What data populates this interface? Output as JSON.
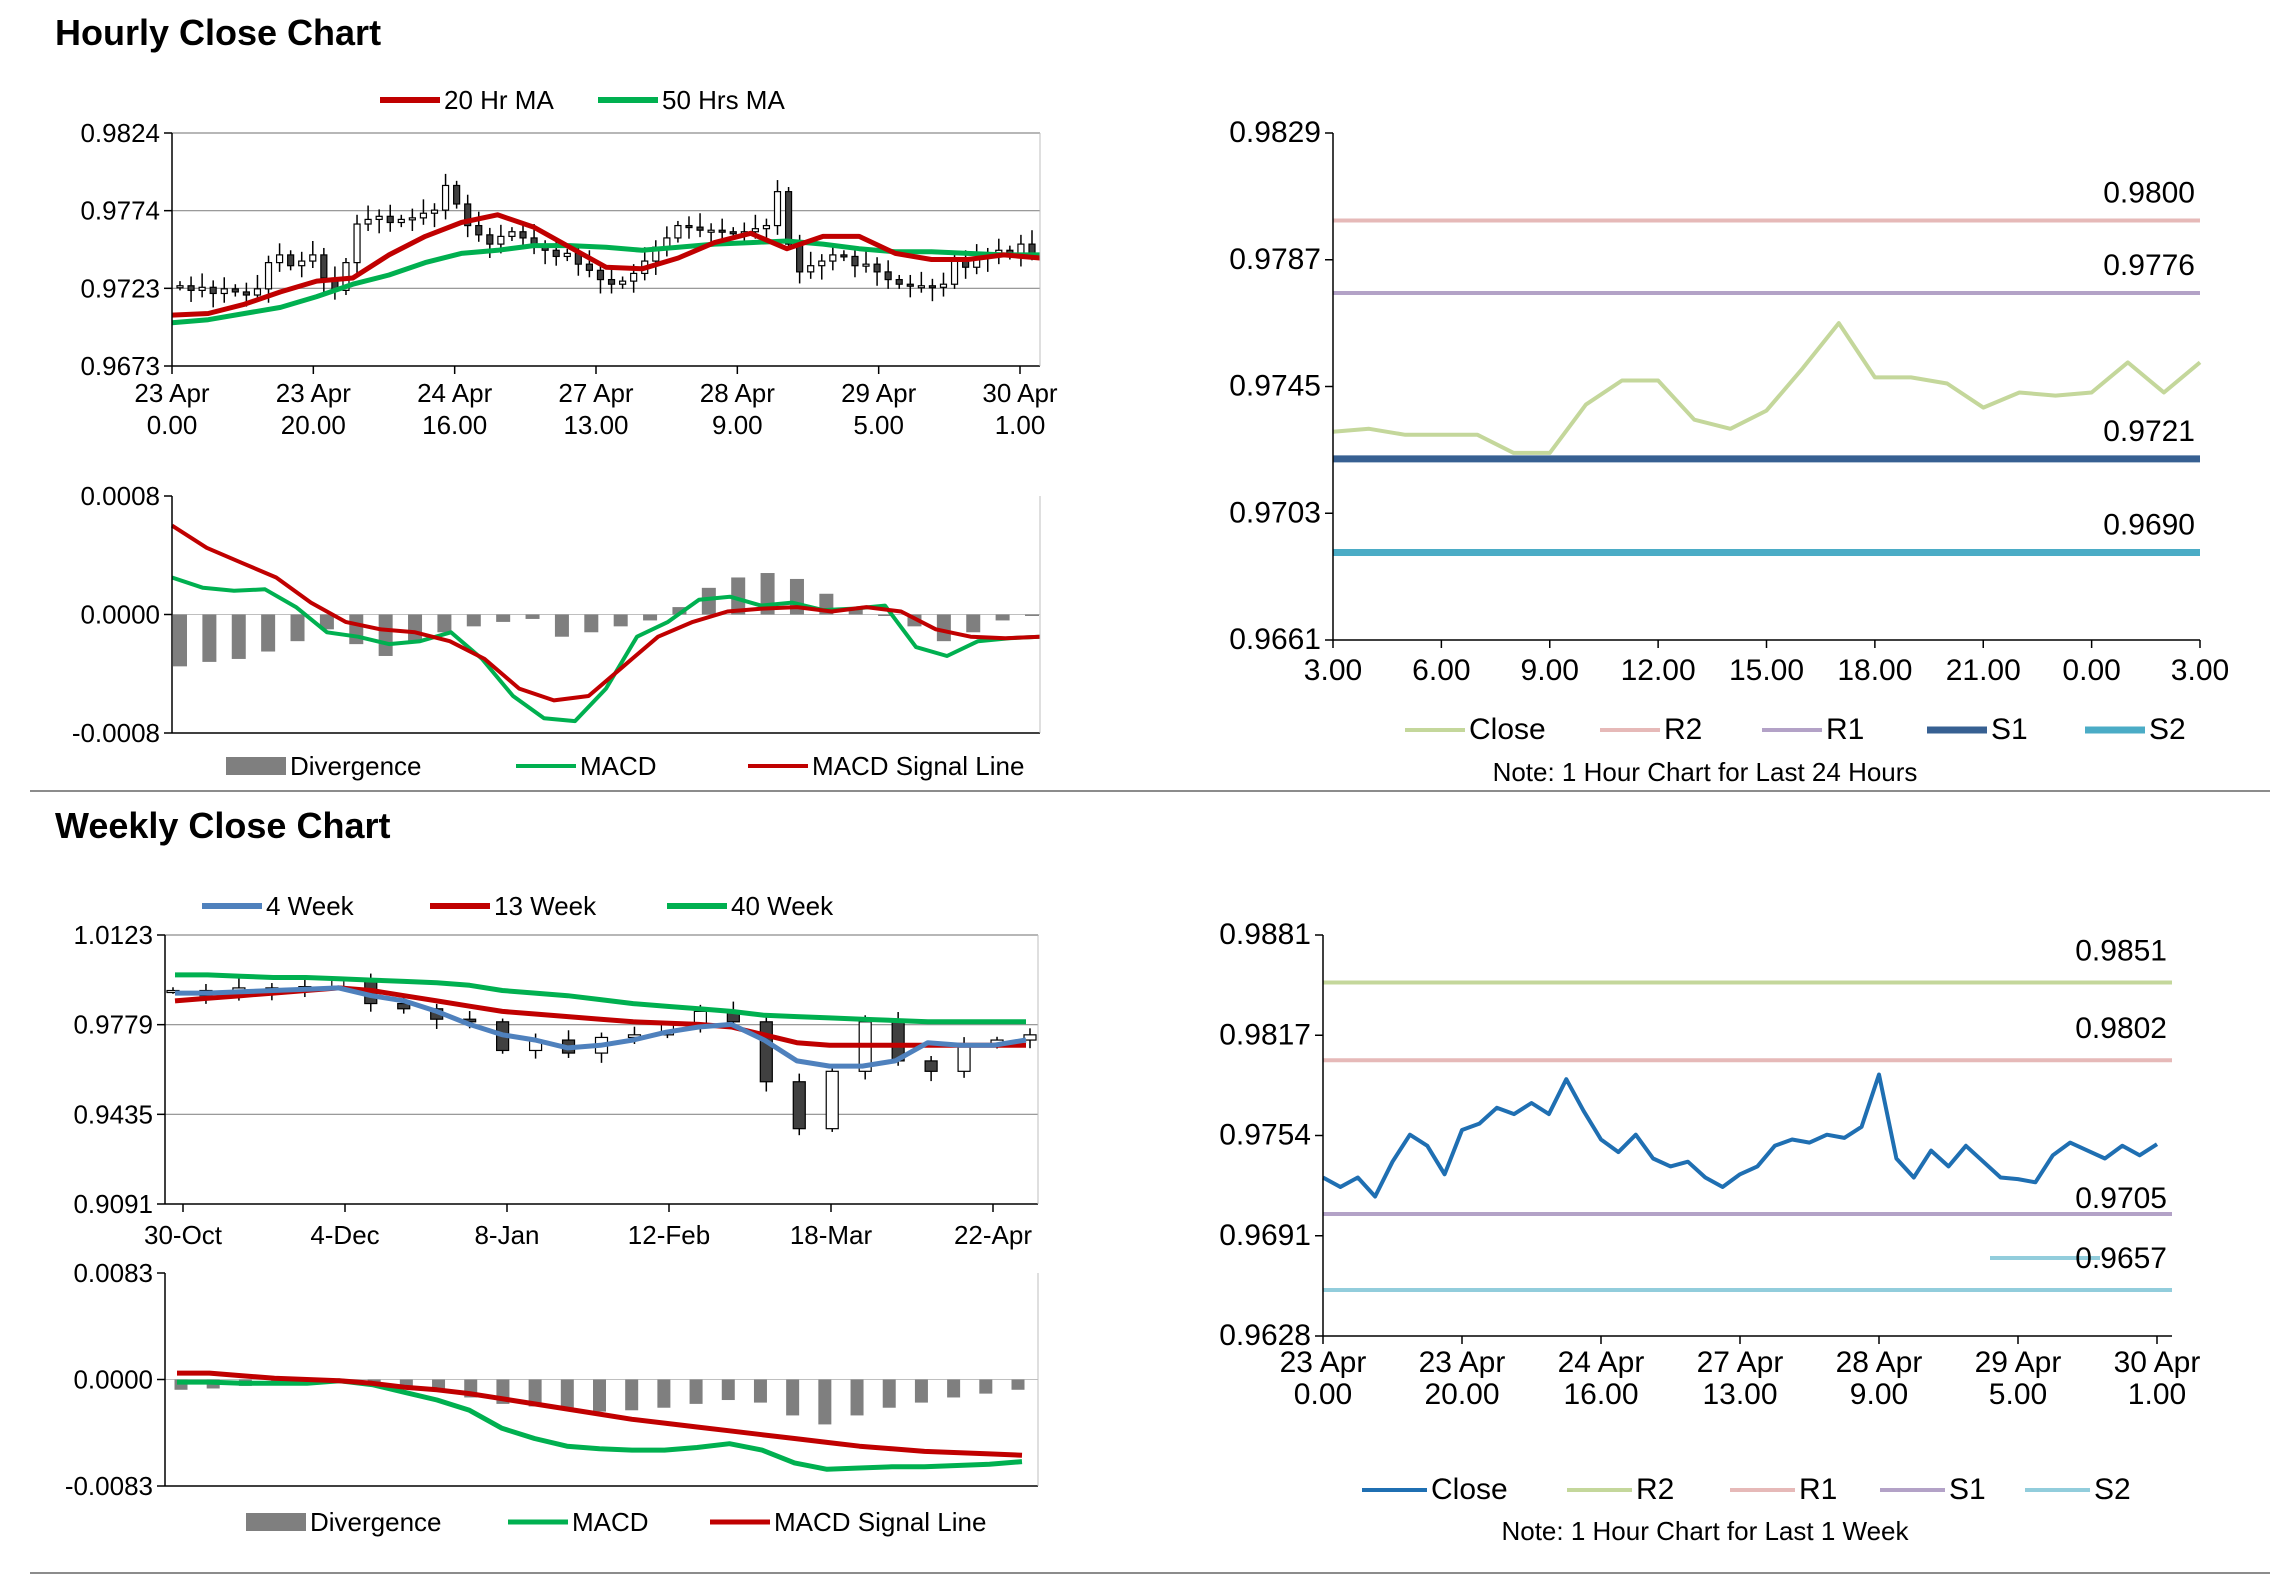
{
  "sections": {
    "hourly_title": "Hourly Close Chart",
    "weekly_title": "Weekly Close Chart"
  },
  "colors": {
    "ma_red": "#c00000",
    "ma_green": "#00b050",
    "ma_blue": "#4f81bd",
    "divergence": "#7f7f7f",
    "close_light_green": "#c4d79b",
    "r2_pink": "#e6b9b8",
    "r1_lavender": "#b3a2c7",
    "s1_blue": "#376092",
    "s2_teal": "#4bacc6",
    "weekly_close": "#1f6fb2",
    "weekly_r2": "#c4d79b",
    "weekly_r1": "#e6b9b8",
    "weekly_s1": "#b3a2c7",
    "weekly_s2": "#92cddc"
  },
  "chart_data": [
    {
      "id": "hourly_price",
      "type": "candlestick",
      "legend": [
        "20 Hr MA",
        "50 Hrs MA"
      ],
      "yticks": [
        "0.9824",
        "0.9774",
        "0.9723",
        "0.9673"
      ],
      "ylim": [
        0.9673,
        0.9824
      ],
      "xticks": [
        [
          "23 Apr",
          "0.00"
        ],
        [
          "23 Apr",
          "20.00"
        ],
        [
          "24 Apr",
          "16.00"
        ],
        [
          "27 Apr",
          "13.00"
        ],
        [
          "28 Apr",
          "9.00"
        ],
        [
          "29 Apr",
          "5.00"
        ],
        [
          "30 Apr",
          "1.00"
        ]
      ],
      "close": [
        0.9725,
        0.9722,
        0.9724,
        0.972,
        0.9723,
        0.9721,
        0.9719,
        0.9723,
        0.974,
        0.9745,
        0.9738,
        0.9741,
        0.9745,
        0.973,
        0.9722,
        0.974,
        0.9765,
        0.9768,
        0.977,
        0.9766,
        0.9768,
        0.9769,
        0.9772,
        0.9774,
        0.979,
        0.9778,
        0.9764,
        0.9758,
        0.9752,
        0.9757,
        0.976,
        0.9756,
        0.975,
        0.9748,
        0.9744,
        0.9746,
        0.9739,
        0.9735,
        0.9729,
        0.9726,
        0.9728,
        0.9733,
        0.9741,
        0.975,
        0.9756,
        0.9764,
        0.9763,
        0.9761,
        0.9761,
        0.976,
        0.9759,
        0.976,
        0.9762,
        0.9764,
        0.9786,
        0.9752,
        0.9734,
        0.9738,
        0.9741,
        0.9745,
        0.9744,
        0.9738,
        0.9739,
        0.9734,
        0.9729,
        0.9726,
        0.9725,
        0.9725,
        0.9724,
        0.9726,
        0.9742,
        0.9737,
        0.9743,
        0.9745,
        0.9748,
        0.9745,
        0.9752,
        0.9746
      ],
      "ma20": [
        0.9706,
        0.9707,
        0.9713,
        0.9721,
        0.9728,
        0.973,
        0.9745,
        0.9757,
        0.9766,
        0.9771,
        0.9763,
        0.975,
        0.9737,
        0.9736,
        0.9743,
        0.9753,
        0.9759,
        0.9749,
        0.9757,
        0.9757,
        0.9746,
        0.9742,
        0.9742,
        0.9745,
        0.9743
      ],
      "ma50": [
        0.9701,
        0.9703,
        0.9707,
        0.9711,
        0.9718,
        0.9726,
        0.9732,
        0.974,
        0.9746,
        0.9748,
        0.9751,
        0.9751,
        0.975,
        0.9748,
        0.975,
        0.9752,
        0.9753,
        0.9754,
        0.9752,
        0.9749,
        0.9747,
        0.9747,
        0.9746,
        0.9745,
        0.9745
      ]
    },
    {
      "id": "hourly_macd",
      "type": "bar+line",
      "legend": [
        "Divergence",
        "MACD",
        "MACD Signal Line"
      ],
      "yticks": [
        "0.0008",
        "0.0000",
        "-0.0008"
      ],
      "ylim": [
        -0.0008,
        0.0008
      ],
      "divergence": [
        -0.00035,
        -0.00032,
        -0.0003,
        -0.00025,
        -0.00018,
        -0.0001,
        -0.0002,
        -0.00028,
        -0.00018,
        -0.00012,
        -8e-05,
        -5e-05,
        -3e-05,
        -0.00015,
        -0.00012,
        -8e-05,
        -4e-05,
        5e-05,
        0.00018,
        0.00025,
        0.00028,
        0.00024,
        0.00014,
        5e-05,
        -1e-05,
        -8e-05,
        -0.00018,
        -0.00012,
        -4e-05,
        -1e-05
      ],
      "macd": [
        0.00025,
        0.00018,
        0.00016,
        0.00017,
        5e-05,
        -0.00012,
        -0.00015,
        -0.0002,
        -0.00018,
        -0.00012,
        -0.0003,
        -0.00055,
        -0.0007,
        -0.00072,
        -0.0005,
        -0.00015,
        -5e-05,
        0.0001,
        0.00012,
        6e-05,
        8e-05,
        3e-05,
        4e-05,
        6e-05,
        -0.00022,
        -0.00028,
        -0.00018,
        -0.00016,
        -0.00015
      ],
      "signal": [
        0.0006,
        0.00045,
        0.00035,
        0.00025,
        8e-05,
        -5e-05,
        -0.0001,
        -0.00012,
        -0.00018,
        -0.0003,
        -0.0005,
        -0.00058,
        -0.00055,
        -0.00035,
        -0.00015,
        -5e-05,
        2e-05,
        4e-05,
        5e-05,
        2e-05,
        5e-05,
        2e-05,
        -0.0001,
        -0.00015,
        -0.00016,
        -0.00015
      ]
    },
    {
      "id": "hourly_24h",
      "type": "line",
      "legend": [
        "Close",
        "R2",
        "R1",
        "S1",
        "S2"
      ],
      "note": "Note: 1 Hour Chart for Last 24 Hours",
      "yticks": [
        "0.9829",
        "0.9787",
        "0.9745",
        "0.9703",
        "0.9661"
      ],
      "ylim": [
        0.9661,
        0.9829
      ],
      "xticks": [
        "3.00",
        "6.00",
        "9.00",
        "12.00",
        "15.00",
        "18.00",
        "21.00",
        "0.00",
        "3.00"
      ],
      "close": [
        0.973,
        0.9731,
        0.9729,
        0.9729,
        0.9729,
        0.9723,
        0.9723,
        0.9739,
        0.9747,
        0.9747,
        0.9734,
        0.9731,
        0.9737,
        0.9751,
        0.9766,
        0.9748,
        0.9748,
        0.9746,
        0.9738,
        0.9743,
        0.9742,
        0.9743,
        0.9753,
        0.9743,
        0.9753
      ],
      "levels": [
        {
          "name": "R2",
          "value": 0.98,
          "label": "0.9800"
        },
        {
          "name": "R1",
          "value": 0.9776,
          "label": "0.9776"
        },
        {
          "name": "S1",
          "value": 0.9721,
          "label": "0.9721"
        },
        {
          "name": "S2",
          "value": 0.969,
          "label": "0.9690"
        }
      ]
    },
    {
      "id": "weekly_price",
      "type": "candlestick",
      "legend": [
        "4 Week",
        "13 Week",
        "40 Week"
      ],
      "yticks": [
        "1.0123",
        "0.9779",
        "0.9435",
        "0.9091"
      ],
      "ylim": [
        0.9091,
        1.0123
      ],
      "xticks": [
        "30-Oct",
        "4-Dec",
        "8-Jan",
        "12-Feb",
        "18-Mar",
        "22-Apr"
      ],
      "close": [
        0.991,
        0.989,
        0.992,
        0.991,
        0.9925,
        0.995,
        0.986,
        0.984,
        0.98,
        0.979,
        0.968,
        0.972,
        0.967,
        0.973,
        0.974,
        0.978,
        0.983,
        0.979,
        0.956,
        0.938,
        0.96,
        0.979,
        0.964,
        0.96,
        0.97,
        0.972,
        0.974
      ],
      "w4": [
        0.99,
        0.99,
        0.9905,
        0.991,
        0.9915,
        0.992,
        0.989,
        0.987,
        0.983,
        0.978,
        0.974,
        0.972,
        0.969,
        0.97,
        0.972,
        0.975,
        0.977,
        0.978,
        0.972,
        0.964,
        0.962,
        0.962,
        0.964,
        0.971,
        0.97,
        0.97,
        0.972
      ],
      "w13": [
        0.987,
        0.988,
        0.989,
        0.99,
        0.991,
        0.992,
        0.991,
        0.989,
        0.987,
        0.985,
        0.983,
        0.982,
        0.981,
        0.98,
        0.979,
        0.9785,
        0.978,
        0.977,
        0.974,
        0.971,
        0.97,
        0.97,
        0.97,
        0.97,
        0.97,
        0.97,
        0.97
      ],
      "w40": [
        0.997,
        0.997,
        0.9965,
        0.996,
        0.996,
        0.9955,
        0.995,
        0.9945,
        0.994,
        0.993,
        0.991,
        0.99,
        0.989,
        0.9875,
        0.986,
        0.985,
        0.984,
        0.983,
        0.9815,
        0.981,
        0.9805,
        0.98,
        0.9795,
        0.979,
        0.979,
        0.979,
        0.979
      ]
    },
    {
      "id": "weekly_macd",
      "type": "bar+line",
      "legend": [
        "Divergence",
        "MACD",
        "MACD Signal Line"
      ],
      "yticks": [
        "0.0083",
        "0.0000",
        "-0.0083"
      ],
      "ylim": [
        -0.0083,
        0.0083
      ],
      "divergence": [
        -0.0008,
        -0.0007,
        -0.0005,
        -0.0003,
        -0.0002,
        -0.0001,
        -0.0003,
        -0.0006,
        -0.0009,
        -0.0014,
        -0.0019,
        -0.0021,
        -0.0024,
        -0.0025,
        -0.0024,
        -0.0022,
        -0.0019,
        -0.0016,
        -0.0018,
        -0.0028,
        -0.0035,
        -0.0028,
        -0.0022,
        -0.0018,
        -0.0014,
        -0.0011,
        -0.0008
      ],
      "macd": [
        -0.0002,
        -0.0002,
        -0.0003,
        -0.0003,
        -0.0003,
        -0.0001,
        -0.0004,
        -0.001,
        -0.0016,
        -0.0024,
        -0.0038,
        -0.0046,
        -0.0052,
        -0.0054,
        -0.0055,
        -0.0055,
        -0.0053,
        -0.005,
        -0.0055,
        -0.0065,
        -0.007,
        -0.0069,
        -0.0068,
        -0.0068,
        -0.0067,
        -0.0066,
        -0.0064
      ],
      "signal": [
        0.0005,
        0.0005,
        0.0003,
        0.0001,
        0.0,
        -0.0001,
        -0.0003,
        -0.0006,
        -0.0008,
        -0.0011,
        -0.0015,
        -0.0019,
        -0.0023,
        -0.0027,
        -0.0031,
        -0.0034,
        -0.0037,
        -0.004,
        -0.0043,
        -0.0046,
        -0.0049,
        -0.0052,
        -0.0054,
        -0.0056,
        -0.0057,
        -0.0058,
        -0.0059
      ]
    },
    {
      "id": "weekly_1week",
      "type": "line",
      "legend": [
        "Close",
        "R2",
        "R1",
        "S1",
        "S2"
      ],
      "note": "Note: 1 Hour Chart for Last 1 Week",
      "yticks": [
        "0.9881",
        "0.9817",
        "0.9754",
        "0.9691",
        "0.9628"
      ],
      "ylim": [
        0.9628,
        0.9881
      ],
      "xticks": [
        [
          "23 Apr",
          "0.00"
        ],
        [
          "23 Apr",
          "20.00"
        ],
        [
          "24 Apr",
          "16.00"
        ],
        [
          "27 Apr",
          "13.00"
        ],
        [
          "28 Apr",
          "9.00"
        ],
        [
          "29 Apr",
          "5.00"
        ],
        [
          "30 Apr",
          "1.00"
        ]
      ],
      "close": [
        0.9728,
        0.9722,
        0.9728,
        0.9716,
        0.9738,
        0.9755,
        0.9748,
        0.973,
        0.9758,
        0.9762,
        0.9772,
        0.9768,
        0.9775,
        0.9768,
        0.979,
        0.977,
        0.9752,
        0.9744,
        0.9755,
        0.974,
        0.9735,
        0.9738,
        0.9728,
        0.9722,
        0.973,
        0.9735,
        0.9748,
        0.9752,
        0.975,
        0.9755,
        0.9753,
        0.976,
        0.9793,
        0.974,
        0.9728,
        0.9745,
        0.9735,
        0.9748,
        0.9738,
        0.9728,
        0.9727,
        0.9725,
        0.9742,
        0.975,
        0.9745,
        0.974,
        0.9748,
        0.9742,
        0.9749
      ],
      "levels": [
        {
          "name": "R2",
          "value": 0.9851,
          "label": "0.9851"
        },
        {
          "name": "R1",
          "value": 0.9802,
          "label": "0.9802"
        },
        {
          "name": "S1",
          "value": 0.9705,
          "label": "0.9705"
        },
        {
          "name": "S2",
          "value": 0.9657,
          "label": "0.9657"
        }
      ]
    }
  ]
}
